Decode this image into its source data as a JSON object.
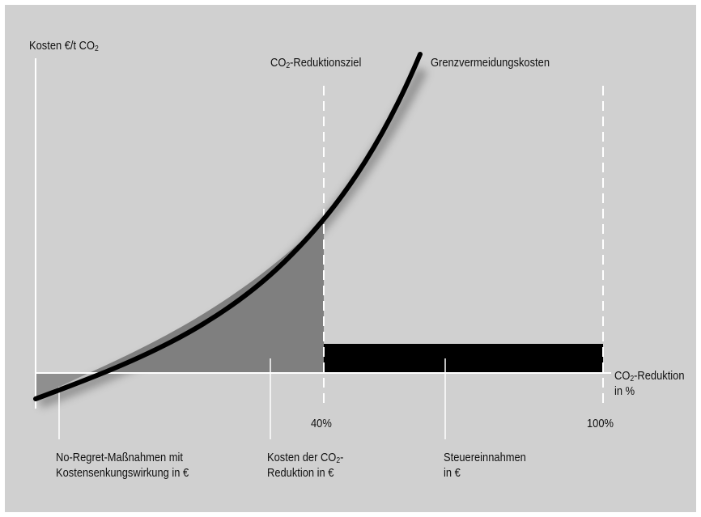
{
  "labels": {
    "y_axis_prefix": "Kosten €/t CO",
    "target_prefix": "CO",
    "target_suffix": "-Reduktionsziel",
    "curve_name": "Grenzvermeidungskosten",
    "x_axis_prefix": "CO",
    "x_axis_suffix": "-Reduktion",
    "x_axis_unit": "in %",
    "subscript": "2",
    "tick_40": "40%",
    "tick_100": "100%",
    "no_regret_line1": "No-Regret-Maßnahmen mit",
    "no_regret_line2": "Kostensenkungswirkung in €",
    "costs_line1_prefix": "Kosten der CO",
    "costs_line1_suffix": "-",
    "costs_line2": "Reduktion in €",
    "tax_line1": "Steuereinnahmen",
    "tax_line2": "in €"
  },
  "colors": {
    "background": "#d0d0d0",
    "curve": "#000000",
    "cost_area": "#7f7f7f",
    "no_regret_area": "#8f8f8f",
    "tax_bar": "#000000",
    "axes": "#ffffff"
  }
}
